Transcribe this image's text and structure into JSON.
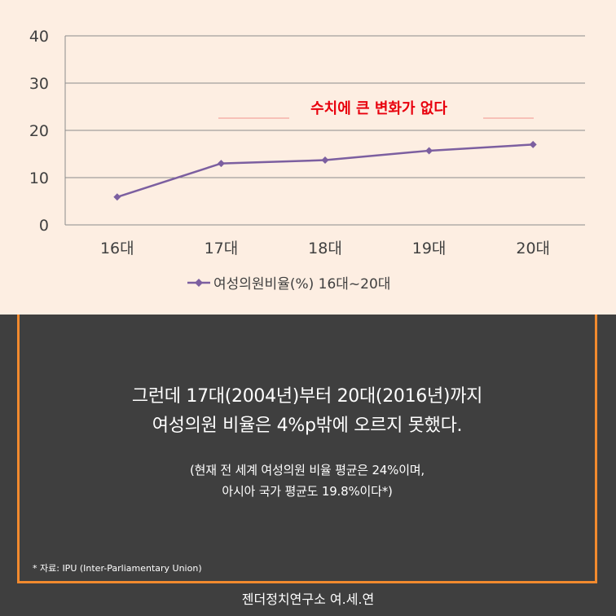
{
  "chart_data": {
    "type": "line",
    "categories": [
      "16대",
      "17대",
      "18대",
      "19대",
      "20대"
    ],
    "series": [
      {
        "name": "여성의원비율(%) 16대~20대",
        "values": [
          5.9,
          13.0,
          13.7,
          15.7,
          17.0
        ],
        "color": "#7c5fa0"
      }
    ],
    "yticks": [
      "0",
      "10",
      "20",
      "30",
      "40"
    ],
    "ylim": [
      0,
      40
    ],
    "grid": true,
    "legend": "bottom",
    "annotation": "수치에 큰 변화가 없다",
    "annotation_color": "#e8000d"
  },
  "text": {
    "line1": "그런데 17대(2004년)부터 20대(2016년)까지",
    "line2": "여성의원 비율은 4%p밖에 오르지 못했다.",
    "note1": "(현재 전 세계 여성의원 비율 평균은 24%이며,",
    "note2": "아시아 국가 평균도 19.8%이다*)",
    "source": "* 자료: IPU (Inter-Parliamentary Union)"
  },
  "footer": "젠더정치연구소 여.세.연"
}
